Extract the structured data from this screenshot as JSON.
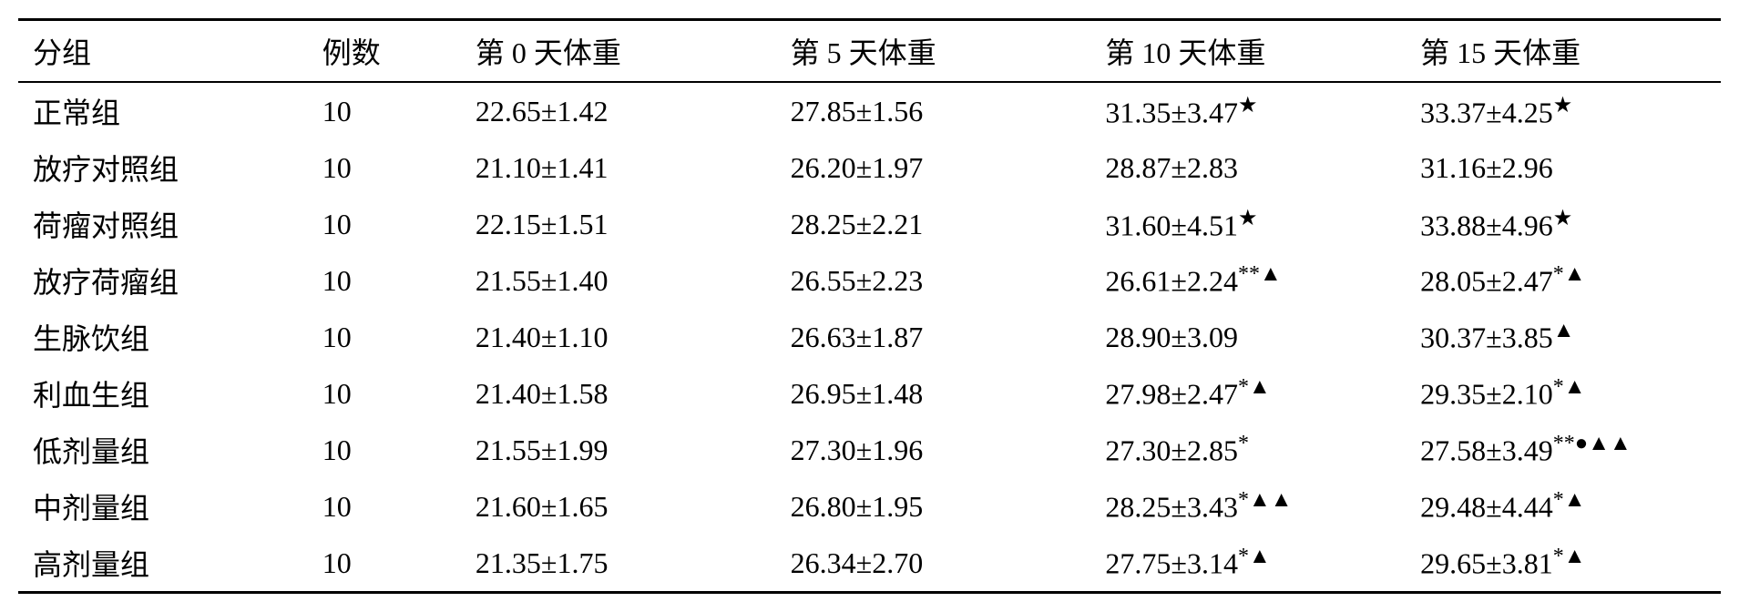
{
  "table": {
    "columns": [
      {
        "key": "group",
        "label": "分组",
        "class": "col-group"
      },
      {
        "key": "count",
        "label": "例数",
        "class": "col-count"
      },
      {
        "key": "day0",
        "label": "第 0 天体重",
        "class": "col-data"
      },
      {
        "key": "day5",
        "label": "第 5 天体重",
        "class": "col-data"
      },
      {
        "key": "day10",
        "label": "第 10 天体重",
        "class": "col-data"
      },
      {
        "key": "day15",
        "label": "第 15 天体重",
        "class": "col-data"
      }
    ],
    "rows": [
      {
        "group": "正常组",
        "count": "10",
        "day0": {
          "value": "22.65±1.42",
          "markers": ""
        },
        "day5": {
          "value": "27.85±1.56",
          "markers": ""
        },
        "day10": {
          "value": "31.35±3.47",
          "markers": "★"
        },
        "day15": {
          "value": "33.37±4.25",
          "markers": "★"
        }
      },
      {
        "group": "放疗对照组",
        "count": "10",
        "day0": {
          "value": "21.10±1.41",
          "markers": ""
        },
        "day5": {
          "value": "26.20±1.97",
          "markers": ""
        },
        "day10": {
          "value": "28.87±2.83",
          "markers": ""
        },
        "day15": {
          "value": "31.16±2.96",
          "markers": ""
        }
      },
      {
        "group": "荷瘤对照组",
        "count": "10",
        "day0": {
          "value": "22.15±1.51",
          "markers": ""
        },
        "day5": {
          "value": "28.25±2.21",
          "markers": ""
        },
        "day10": {
          "value": "31.60±4.51",
          "markers": "★"
        },
        "day15": {
          "value": "33.88±4.96",
          "markers": "★"
        }
      },
      {
        "group": "放疗荷瘤组",
        "count": "10",
        "day0": {
          "value": "21.55±1.40",
          "markers": ""
        },
        "day5": {
          "value": "26.55±2.23",
          "markers": ""
        },
        "day10": {
          "value": "26.61±2.24",
          "markers": "**▲"
        },
        "day15": {
          "value": "28.05±2.47",
          "markers": "*▲"
        }
      },
      {
        "group": "生脉饮组",
        "count": "10",
        "day0": {
          "value": "21.40±1.10",
          "markers": ""
        },
        "day5": {
          "value": "26.63±1.87",
          "markers": ""
        },
        "day10": {
          "value": "28.90±3.09",
          "markers": ""
        },
        "day15": {
          "value": "30.37±3.85",
          "markers": "▲"
        }
      },
      {
        "group": "利血生组",
        "count": "10",
        "day0": {
          "value": "21.40±1.58",
          "markers": ""
        },
        "day5": {
          "value": "26.95±1.48",
          "markers": ""
        },
        "day10": {
          "value": "27.98±2.47",
          "markers": "*▲"
        },
        "day15": {
          "value": "29.35±2.10",
          "markers": "*▲"
        }
      },
      {
        "group": "低剂量组",
        "count": "10",
        "day0": {
          "value": "21.55±1.99",
          "markers": ""
        },
        "day5": {
          "value": "27.30±1.96",
          "markers": ""
        },
        "day10": {
          "value": "27.30±2.85",
          "markers": "*"
        },
        "day15": {
          "value": "27.58±3.49",
          "markers": "**●▲▲"
        }
      },
      {
        "group": "中剂量组",
        "count": "10",
        "day0": {
          "value": "21.60±1.65",
          "markers": ""
        },
        "day5": {
          "value": "26.80±1.95",
          "markers": ""
        },
        "day10": {
          "value": "28.25±3.43",
          "markers": "*▲▲"
        },
        "day15": {
          "value": "29.48±4.44",
          "markers": "*▲"
        }
      },
      {
        "group": "高剂量组",
        "count": "10",
        "day0": {
          "value": "21.35±1.75",
          "markers": ""
        },
        "day5": {
          "value": "26.34±2.70",
          "markers": ""
        },
        "day10": {
          "value": "27.75±3.14",
          "markers": "*▲"
        },
        "day15": {
          "value": "29.65±3.81",
          "markers": "*▲"
        }
      }
    ],
    "styling": {
      "font_family": "SimSun",
      "font_size": 32,
      "text_color": "#000000",
      "background_color": "#ffffff",
      "border_top_width": 3,
      "border_header_width": 2,
      "border_bottom_width": 3,
      "border_color": "#000000",
      "cell_padding": "8px 16px"
    }
  }
}
